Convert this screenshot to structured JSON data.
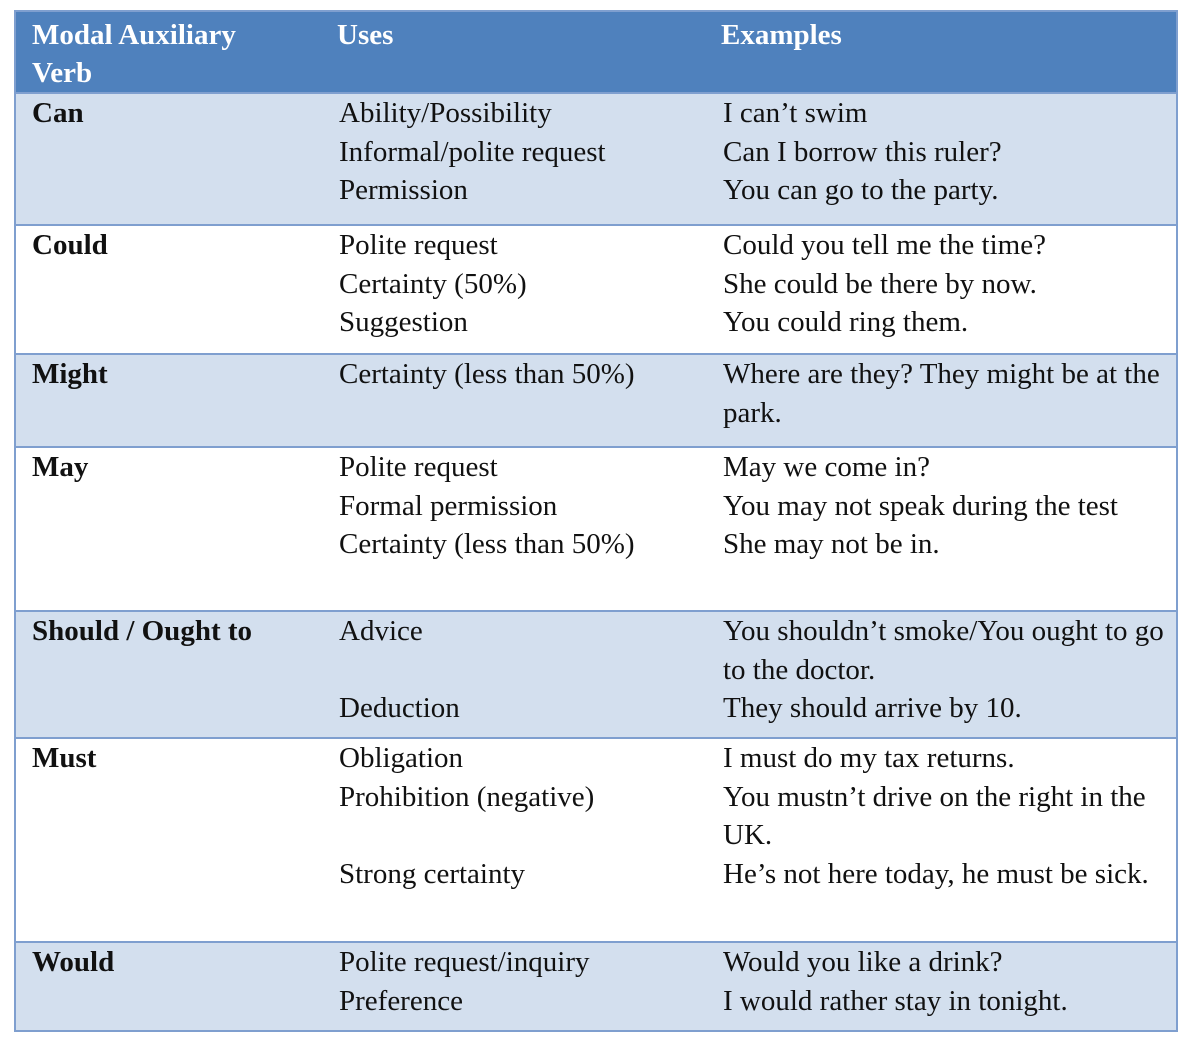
{
  "table": {
    "headers": [
      "Modal Auxiliary Verb",
      "Uses",
      "Examples"
    ],
    "header_parts": {
      "verb_line1": "Modal Auxiliary",
      "verb_line2": "Verb",
      "uses": "Uses",
      "examples": "Examples"
    },
    "rows": [
      {
        "verb": "Can",
        "uses": [
          "Ability/Possibility",
          "Informal/polite request",
          "Permission"
        ],
        "examples": [
          "I can’t swim",
          "Can I borrow this ruler?",
          "You can go to the party."
        ]
      },
      {
        "verb": "Could",
        "uses": [
          "Polite request",
          "Certainty (50%)",
          "Suggestion"
        ],
        "examples": [
          "Could you tell me the time?",
          "She could be there by now.",
          "You could ring them."
        ]
      },
      {
        "verb": "Might",
        "uses": [
          "Certainty (less than 50%)"
        ],
        "examples": [
          "Where are they? They might be at the park."
        ]
      },
      {
        "verb": "May",
        "uses": [
          "Polite request",
          "Formal permission",
          "Certainty (less than 50%)"
        ],
        "examples": [
          "May we come in?",
          "You may not speak during the test",
          "She may not be in."
        ]
      },
      {
        "verb": "Should / Ought to",
        "uses": [
          "Advice",
          "",
          "Deduction"
        ],
        "examples": [
          "You shouldn’t smoke/You ought to go to the doctor.",
          "They should arrive by 10."
        ]
      },
      {
        "verb": "Must",
        "uses": [
          "Obligation",
          "Prohibition (negative)",
          "",
          "Strong certainty"
        ],
        "examples": [
          "I must do my tax returns.",
          "You mustn’t drive on the right in the UK.",
          "He’s not here today, he must be sick."
        ]
      },
      {
        "verb": "Would",
        "uses": [
          "Polite request/inquiry",
          "Preference"
        ],
        "examples": [
          "Would you like a drink?",
          "I would rather stay in tonight."
        ]
      }
    ]
  },
  "colors": {
    "header_bg": "#4f81bd",
    "header_text": "#ffffff",
    "shaded_row_bg": "#d3dfee",
    "plain_row_bg": "#ffffff",
    "border": "#7f9fcf"
  }
}
